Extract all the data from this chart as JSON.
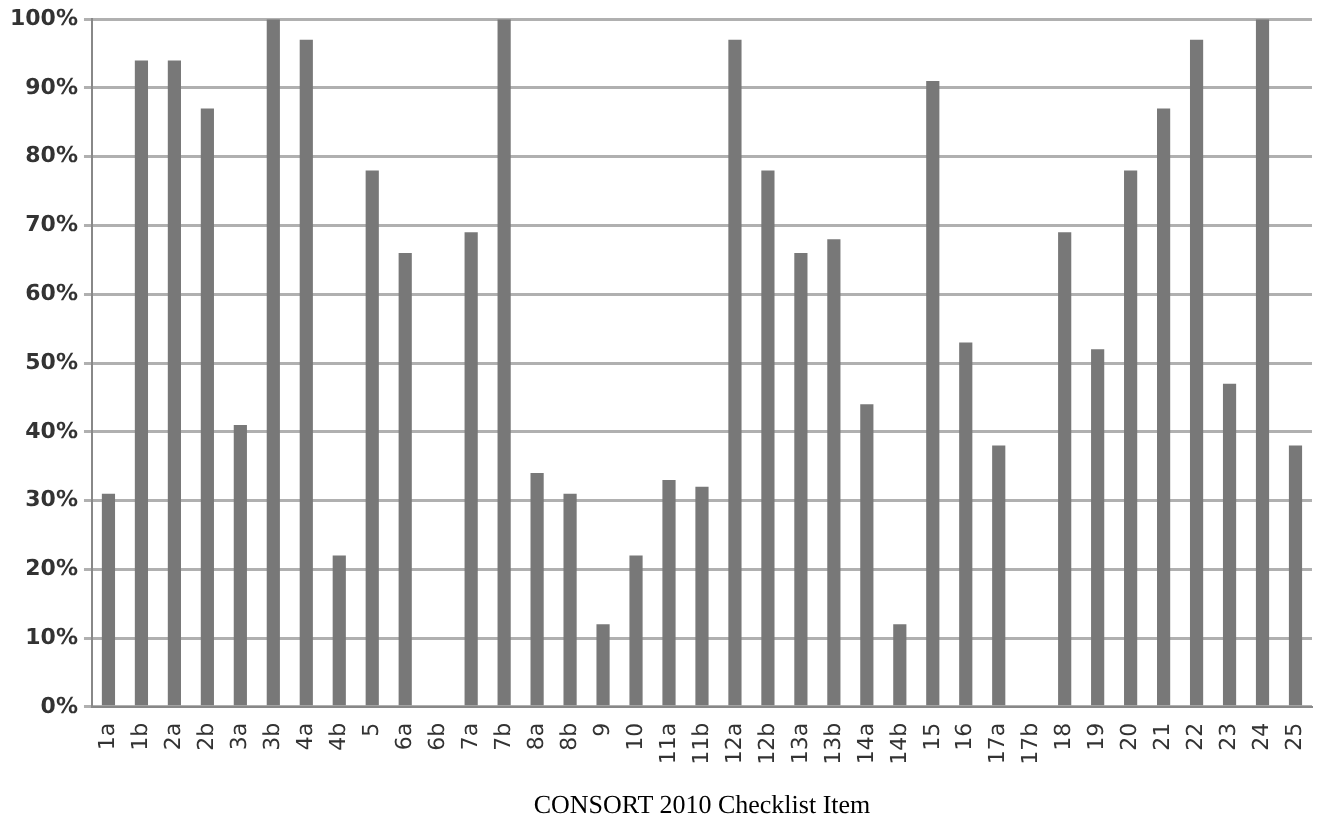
{
  "chart_data": {
    "type": "bar",
    "xlabel": "CONSORT 2010 Checklist Item",
    "categories": [
      "1a",
      "1b",
      "2a",
      "2b",
      "3a",
      "3b",
      "4a",
      "4b",
      "5",
      "6a",
      "6b",
      "7a",
      "7b",
      "8a",
      "8b",
      "9",
      "10",
      "11a",
      "11b",
      "12a",
      "12b",
      "13a",
      "13b",
      "14a",
      "14b",
      "15",
      "16",
      "17a",
      "17b",
      "18",
      "19",
      "20",
      "21",
      "22",
      "23",
      "24",
      "25"
    ],
    "values": [
      31,
      94,
      94,
      87,
      41,
      100,
      97,
      22,
      78,
      66,
      0,
      69,
      100,
      34,
      31,
      12,
      22,
      33,
      32,
      97,
      78,
      66,
      68,
      44,
      12,
      91,
      53,
      38,
      0,
      69,
      52,
      78,
      87,
      97,
      47,
      100,
      38
    ],
    "color": "#787878",
    "ylim": [
      0,
      100
    ],
    "yticks": [
      {
        "value": 0,
        "label": "0%"
      },
      {
        "value": 10,
        "label": "10%"
      },
      {
        "value": 20,
        "label": "20%"
      },
      {
        "value": 30,
        "label": "30%"
      },
      {
        "value": 40,
        "label": "40%"
      },
      {
        "value": 50,
        "label": "50%"
      },
      {
        "value": 60,
        "label": "60%"
      },
      {
        "value": 70,
        "label": "70%"
      },
      {
        "value": 80,
        "label": "80%"
      },
      {
        "value": 90,
        "label": "90%"
      },
      {
        "value": 100,
        "label": "100%"
      }
    ],
    "grid": "y"
  }
}
